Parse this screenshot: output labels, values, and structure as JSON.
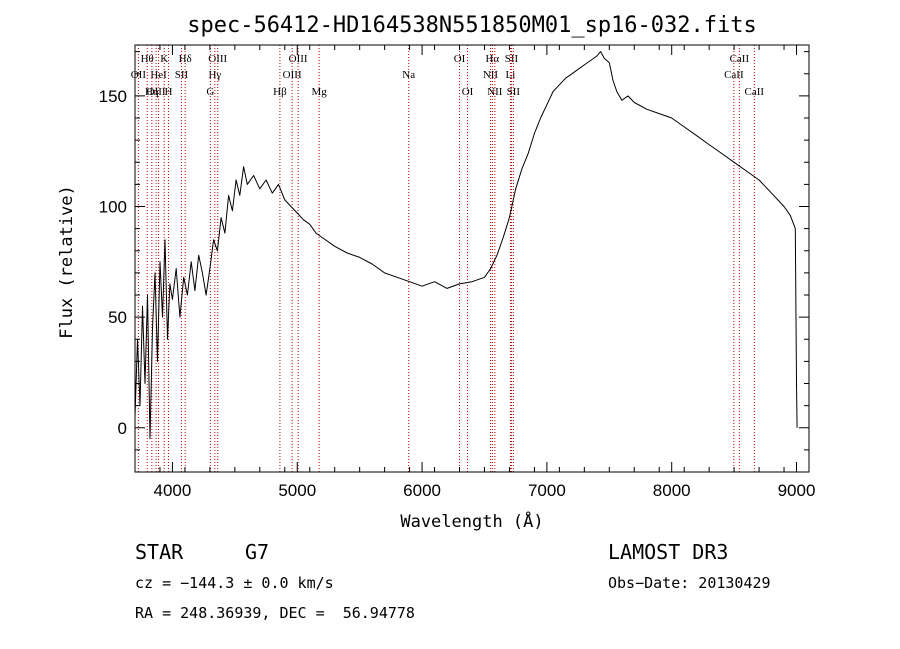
{
  "chart_data": {
    "type": "line",
    "title": "spec-56412-HD164538N551850M01_sp16-032.fits",
    "xlabel": "Wavelength (Å)",
    "ylabel": "Flux (relative)",
    "xlim": [
      3700,
      9100
    ],
    "ylim": [
      -20,
      173
    ],
    "xticks": [
      4000,
      5000,
      6000,
      7000,
      8000,
      9000
    ],
    "yticks": [
      0,
      50,
      100,
      150
    ],
    "series": [
      {
        "name": "flux",
        "x": [
          3700,
          3720,
          3740,
          3760,
          3780,
          3800,
          3820,
          3840,
          3860,
          3880,
          3900,
          3920,
          3940,
          3960,
          3980,
          4000,
          4030,
          4060,
          4090,
          4120,
          4150,
          4180,
          4210,
          4240,
          4270,
          4300,
          4330,
          4360,
          4390,
          4420,
          4450,
          4480,
          4510,
          4540,
          4570,
          4600,
          4650,
          4700,
          4750,
          4800,
          4850,
          4900,
          4950,
          5000,
          5050,
          5100,
          5150,
          5200,
          5300,
          5400,
          5500,
          5600,
          5700,
          5800,
          5900,
          6000,
          6100,
          6200,
          6300,
          6400,
          6500,
          6550,
          6600,
          6650,
          6700,
          6750,
          6800,
          6850,
          6900,
          6950,
          7000,
          7050,
          7100,
          7150,
          7200,
          7250,
          7300,
          7350,
          7400,
          7430,
          7460,
          7500,
          7530,
          7560,
          7600,
          7650,
          7700,
          7800,
          7900,
          8000,
          8100,
          8200,
          8300,
          8400,
          8500,
          8600,
          8700,
          8800,
          8900,
          8950,
          8990,
          9000,
          9005
        ],
        "y": [
          5,
          40,
          10,
          55,
          20,
          60,
          -5,
          45,
          70,
          30,
          75,
          50,
          85,
          40,
          65,
          58,
          72,
          50,
          68,
          60,
          75,
          62,
          78,
          70,
          60,
          72,
          85,
          80,
          95,
          88,
          105,
          98,
          112,
          105,
          118,
          110,
          114,
          108,
          112,
          106,
          110,
          103,
          100,
          97,
          94,
          92,
          88,
          86,
          82,
          79,
          77,
          74,
          70,
          68,
          66,
          64,
          66,
          63,
          65,
          66,
          68,
          72,
          78,
          86,
          95,
          108,
          117,
          124,
          133,
          140,
          146,
          152,
          155,
          158,
          160,
          162,
          164,
          166,
          168,
          170,
          167,
          165,
          157,
          152,
          148,
          150,
          147,
          144,
          142,
          140,
          136,
          132,
          128,
          124,
          120,
          116,
          112,
          106,
          100,
          96,
          90,
          20,
          0
        ]
      }
    ],
    "spectral_lines": [
      {
        "label": "Hθ",
        "wavelength": 3798,
        "row": 1
      },
      {
        "label": "OII",
        "wavelength": 3727,
        "row": 2
      },
      {
        "label": "OIII",
        "wavelength": 3869,
        "row": 3
      },
      {
        "label": "K",
        "wavelength": 3934,
        "row": 1
      },
      {
        "label": "HeI",
        "wavelength": 3889,
        "row": 2
      },
      {
        "label": "Hη",
        "wavelength": 3835,
        "row": 3
      },
      {
        "label": "SII",
        "wavelength": 4072,
        "row": 2
      },
      {
        "label": "H",
        "wavelength": 3968,
        "row": 3
      },
      {
        "label": "Hδ",
        "wavelength": 4102,
        "row": 1
      },
      {
        "label": "OIII",
        "wavelength": 4363,
        "row": 1
      },
      {
        "label": "Hγ",
        "wavelength": 4340,
        "row": 2
      },
      {
        "label": "G",
        "wavelength": 4304,
        "row": 3
      },
      {
        "label": "OIII",
        "wavelength": 5007,
        "row": 1
      },
      {
        "label": "OIII",
        "wavelength": 4959,
        "row": 2
      },
      {
        "label": "Hβ",
        "wavelength": 4861,
        "row": 3
      },
      {
        "label": "Mg",
        "wavelength": 5175,
        "row": 3
      },
      {
        "label": "Na",
        "wavelength": 5893,
        "row": 2
      },
      {
        "label": "OI",
        "wavelength": 6300,
        "row": 1
      },
      {
        "label": "OI",
        "wavelength": 6364,
        "row": 3
      },
      {
        "label": "Hα",
        "wavelength": 6563,
        "row": 1
      },
      {
        "label": "SII",
        "wavelength": 6716,
        "row": 1
      },
      {
        "label": "NII",
        "wavelength": 6548,
        "row": 2
      },
      {
        "label": "Li",
        "wavelength": 6708,
        "row": 2
      },
      {
        "label": "NII",
        "wavelength": 6583,
        "row": 3
      },
      {
        "label": "SII",
        "wavelength": 6731,
        "row": 3
      },
      {
        "label": "CaII",
        "wavelength": 8542,
        "row": 1
      },
      {
        "label": "CaII",
        "wavelength": 8498,
        "row": 2
      },
      {
        "label": "CaII",
        "wavelength": 8662,
        "row": 3
      }
    ]
  },
  "info": {
    "object_class": "STAR",
    "subclass": "G7",
    "survey": "LAMOST DR3",
    "cz": "cz = −144.3 ± 0.0 km/s",
    "obs_date": "Obs−Date: 20130429",
    "coords": "RA = 248.36939, DEC =  56.94778"
  },
  "colors": {
    "line_marker": "#c00000",
    "spectrum": "#000000",
    "axes": "#000000"
  }
}
